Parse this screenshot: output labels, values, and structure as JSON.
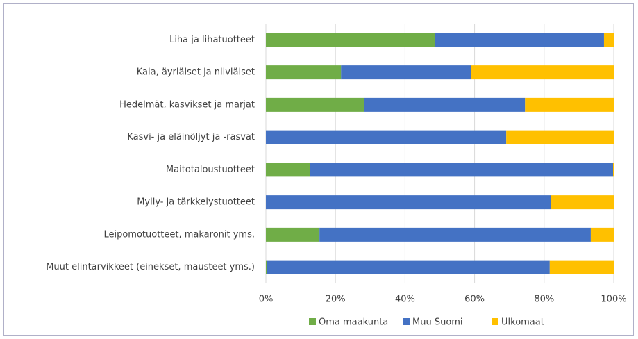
{
  "chart_data": {
    "type": "stacked-bar-horizontal",
    "categories": [
      "Liha ja lihatuotteet",
      "Kala, äyriäiset ja nilviäiset",
      "Hedelmät, kasvikset ja marjat",
      "Kasvi- ja eläinöljyt ja -rasvat",
      "Maitotaloustuotteet",
      "Mylly- ja tärkkelystuotteet",
      "Leipomotuotteet, makaronit yms.",
      "Muut elintarvikkeet (einekset, mausteet yms.)"
    ],
    "series": [
      {
        "name": "Oma maakunta",
        "color": "#70ad47",
        "values": [
          48.7,
          21.6,
          28.3,
          0,
          12.6,
          0,
          15.4,
          0.4
        ]
      },
      {
        "name": "Muu Suomi",
        "color": "#4472c4",
        "values": [
          48.5,
          37.3,
          46.2,
          69.1,
          87.2,
          82.0,
          78.0,
          81.2
        ]
      },
      {
        "name": "Ulkomaat",
        "color": "#ffc000",
        "values": [
          2.8,
          41.1,
          25.5,
          30.9,
          0.2,
          18.0,
          6.6,
          18.4
        ]
      }
    ],
    "xlim": [
      0,
      100
    ],
    "xticks": [
      {
        "value": 0,
        "label": "0%"
      },
      {
        "value": 20,
        "label": "20%"
      },
      {
        "value": 40,
        "label": "40%"
      },
      {
        "value": 60,
        "label": "60%"
      },
      {
        "value": 80,
        "label": "80%"
      },
      {
        "value": 100,
        "label": "100%"
      }
    ],
    "grid": true,
    "legend": "bottom"
  }
}
